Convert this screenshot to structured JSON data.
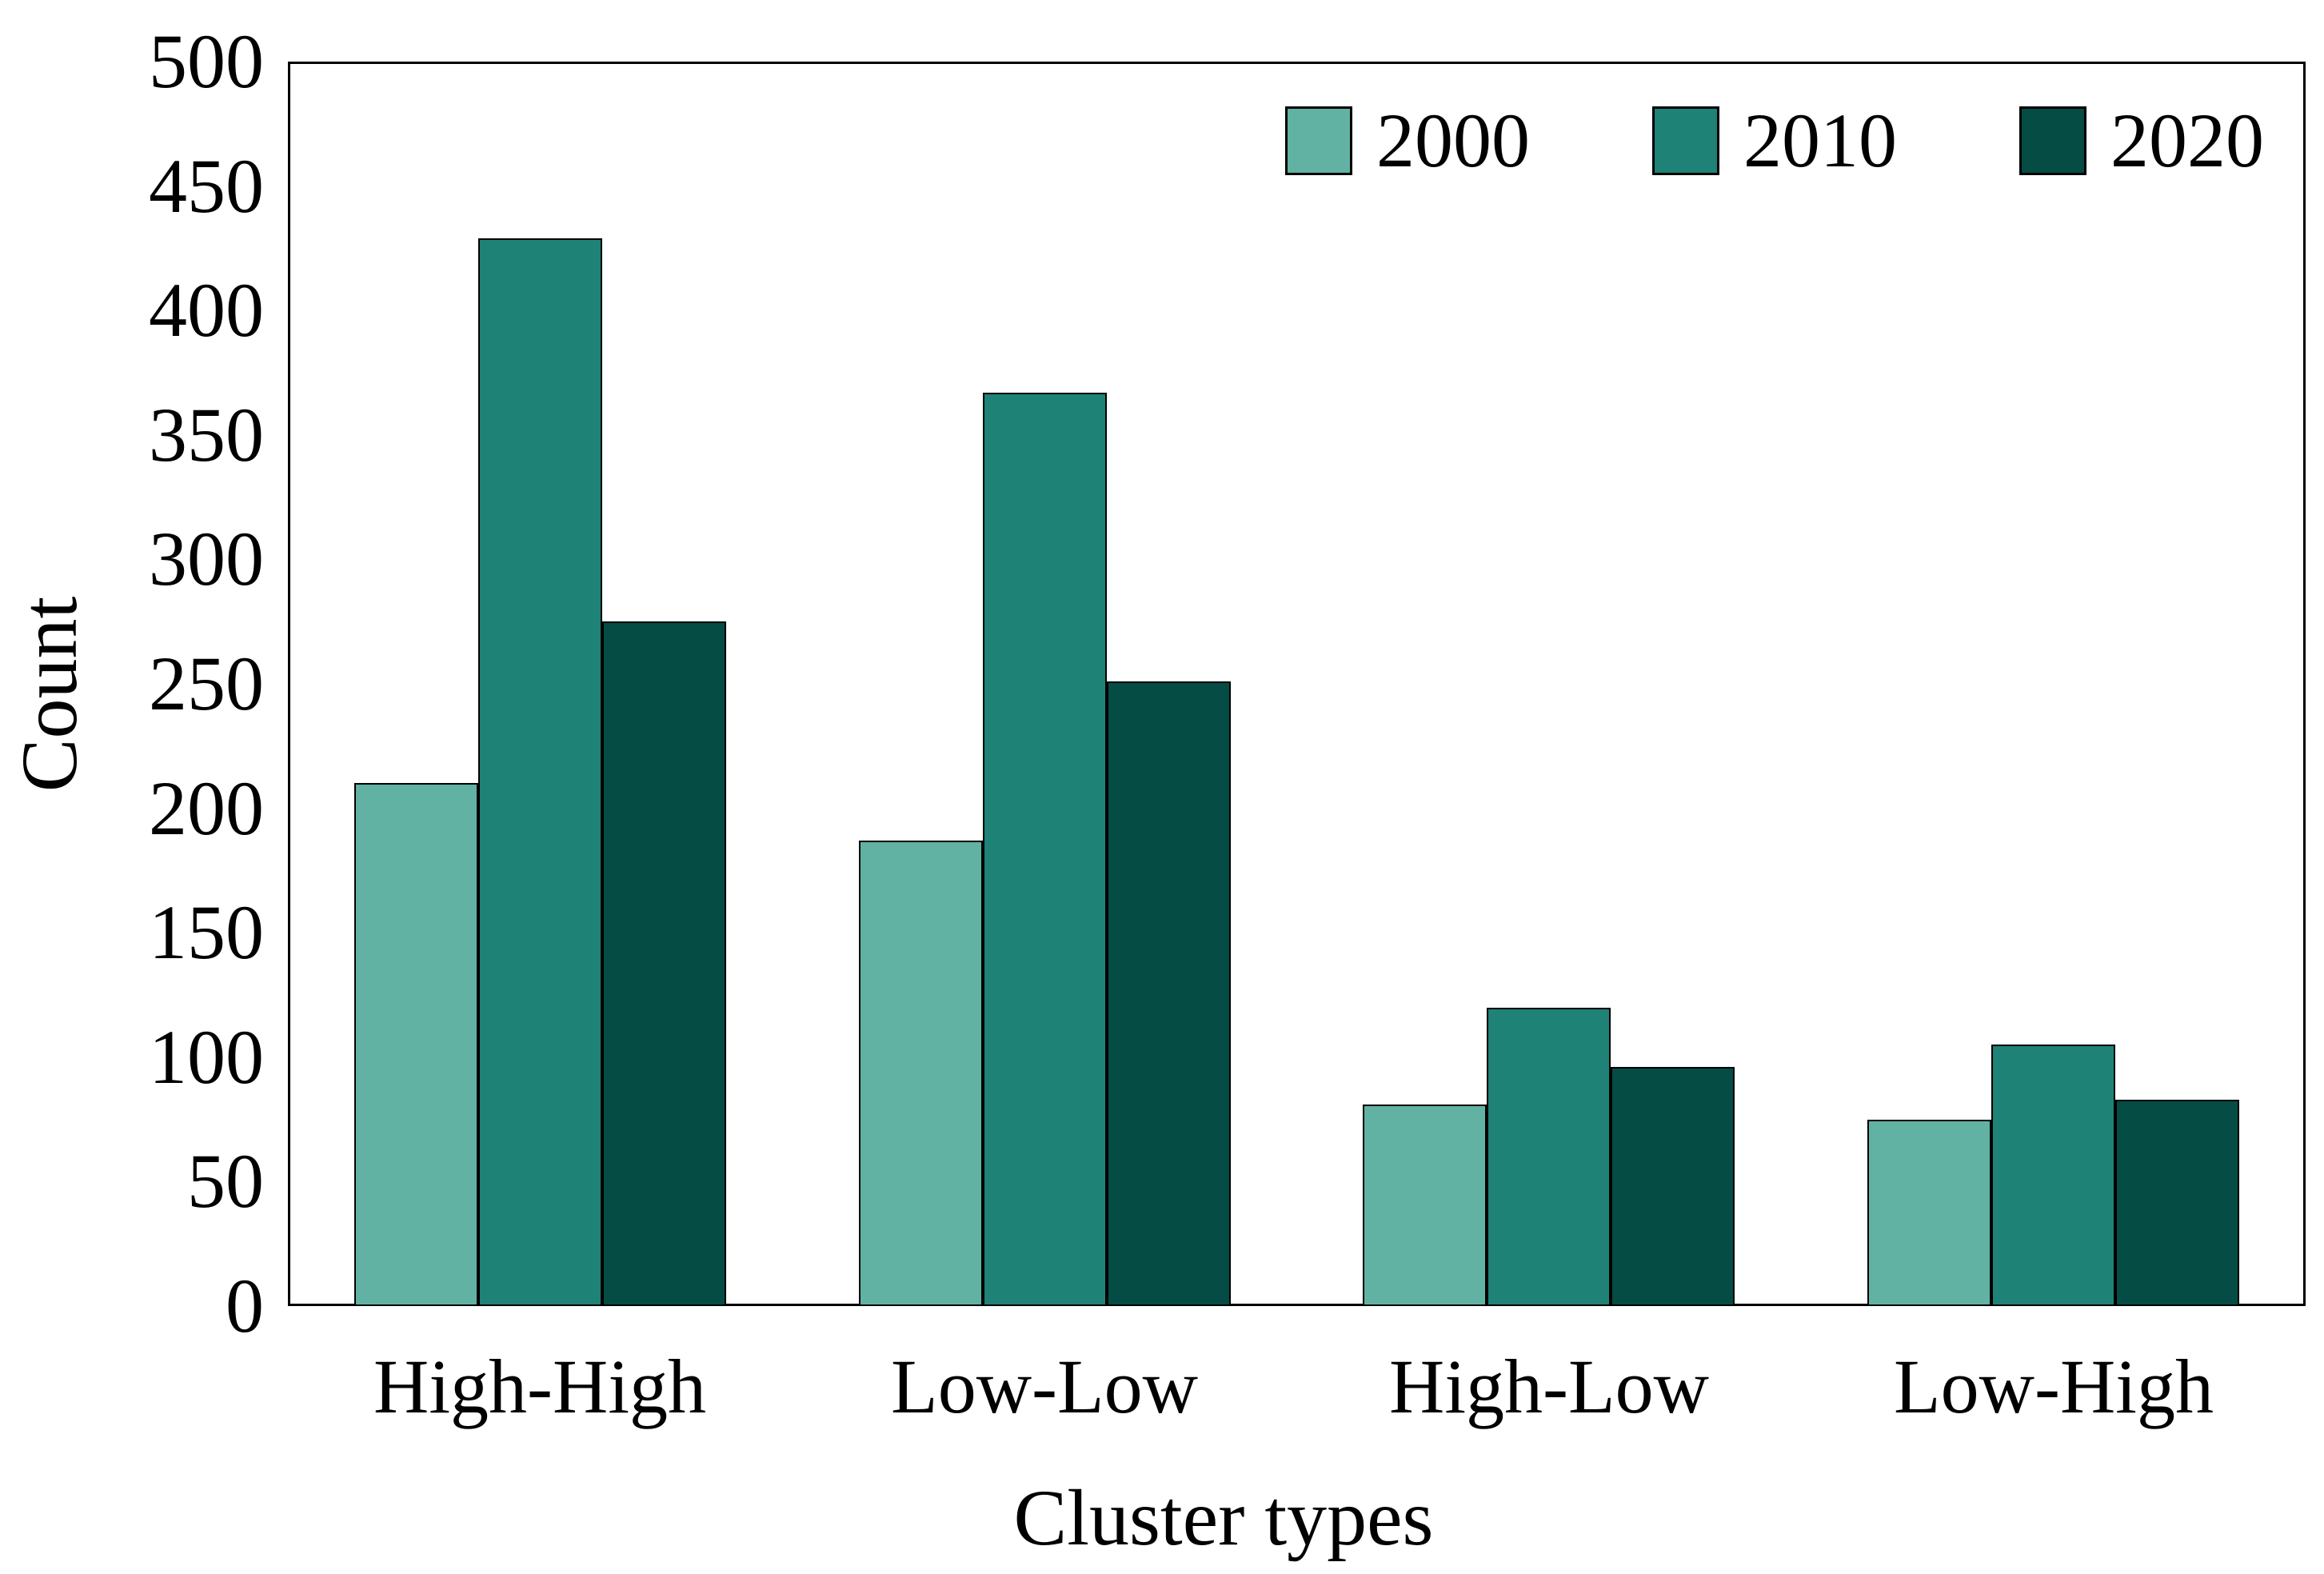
{
  "figure": {
    "background_color": "#FFFFFF",
    "plot_border_color": "#000000",
    "bar_edge_color": "#000000"
  },
  "y_axis": {
    "title": "Count",
    "tick_labels": [
      "0",
      "50",
      "100",
      "150",
      "200",
      "250",
      "300",
      "350",
      "400",
      "450",
      "500"
    ]
  },
  "x_axis": {
    "title": "Cluster types",
    "category_labels": [
      "High-High",
      "Low-Low",
      "High-Low",
      "Low-High"
    ]
  },
  "legend": {
    "position": "top-right-inside",
    "entries": [
      {
        "label": "2000",
        "color": "#62B2A3"
      },
      {
        "label": "2010",
        "color": "#1E8276"
      },
      {
        "label": "2020",
        "color": "#054C44"
      }
    ]
  },
  "chart_data": {
    "type": "bar",
    "title": "",
    "xlabel": "Cluster types",
    "ylabel": "Count",
    "categories": [
      "High-High",
      "Low-Low",
      "High-Low",
      "Low-High"
    ],
    "series": [
      {
        "name": "2000",
        "color": "#62B2A3",
        "values": [
          210,
          187,
          81,
          75
        ]
      },
      {
        "name": "2010",
        "color": "#1E8276",
        "values": [
          429,
          367,
          120,
          105
        ]
      },
      {
        "name": "2020",
        "color": "#054C44",
        "values": [
          275,
          251,
          96,
          83
        ]
      }
    ],
    "ylim": [
      0,
      500
    ],
    "ytick_step": 50,
    "grid": false,
    "legend_position": "top-right-inside"
  }
}
